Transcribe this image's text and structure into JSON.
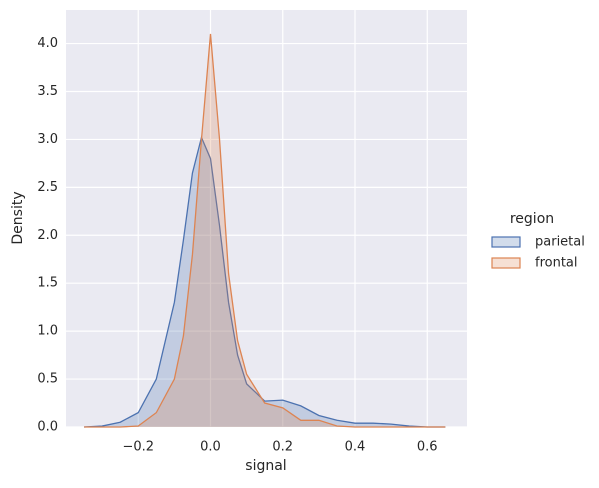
{
  "chart_data": {
    "type": "area",
    "xlabel": "signal",
    "ylabel": "Density",
    "legend_title": "region",
    "legend_position": "right",
    "grid": true,
    "x": [
      -0.35,
      -0.3,
      -0.25,
      -0.2,
      -0.15,
      -0.1,
      -0.075,
      -0.05,
      -0.025,
      0,
      0.025,
      0.05,
      0.075,
      0.1,
      0.15,
      0.2,
      0.25,
      0.3,
      0.35,
      0.4,
      0.45,
      0.5,
      0.55,
      0.6,
      0.65
    ],
    "series": [
      {
        "name": "parietal",
        "color": "#4c72b0",
        "values": [
          0,
          0.01,
          0.05,
          0.15,
          0.5,
          1.3,
          1.95,
          2.65,
          3.02,
          2.8,
          2.1,
          1.3,
          0.75,
          0.45,
          0.27,
          0.28,
          0.22,
          0.12,
          0.07,
          0.04,
          0.04,
          0.03,
          0.01,
          0,
          0
        ]
      },
      {
        "name": "frontal",
        "color": "#dd8452",
        "values": [
          0,
          0,
          0,
          0.01,
          0.15,
          0.5,
          0.95,
          1.8,
          3.0,
          4.1,
          3.0,
          1.6,
          0.9,
          0.55,
          0.25,
          0.2,
          0.07,
          0.07,
          0.01,
          0,
          0,
          0,
          0,
          0,
          0
        ]
      }
    ],
    "xlim": [
      -0.4,
      0.71
    ],
    "ylim": [
      0,
      4.35
    ],
    "xticks": [
      {
        "value": -0.2,
        "label": "−0.2"
      },
      {
        "value": 0,
        "label": "0.0"
      },
      0.2,
      0.4,
      0.6
    ],
    "yticks": [
      {
        "value": 0,
        "label": "0.0"
      },
      0.5,
      {
        "value": 1,
        "label": "1.0"
      },
      1.5,
      {
        "value": 2,
        "label": "2.0"
      },
      2.5,
      {
        "value": 3,
        "label": "3.0"
      },
      3.5,
      {
        "value": 4,
        "label": "4.0"
      }
    ]
  }
}
